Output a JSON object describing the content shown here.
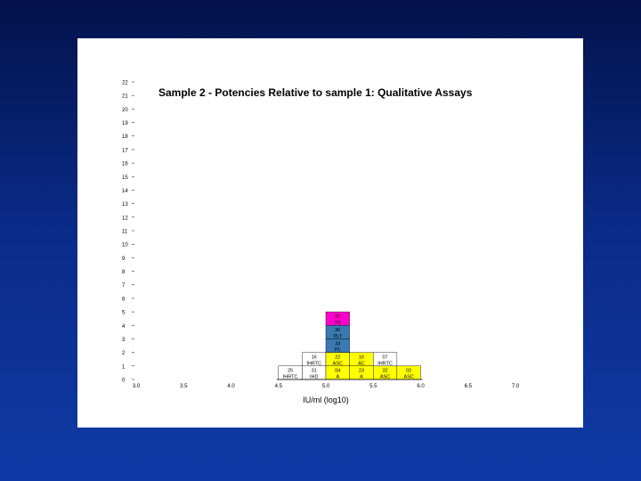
{
  "chart_data": {
    "type": "bar",
    "title": "Sample 2 - Potencies Relative to sample 1: Qualitative Assays",
    "xlabel": "IU/ml (log10)",
    "ylabel": "",
    "xlim": [
      3.0,
      7.0
    ],
    "ylim": [
      0,
      22
    ],
    "x_ticks": [
      "3.0",
      "3.5",
      "4.0",
      "4.5",
      "5.0",
      "5.5",
      "6.0",
      "6.5",
      "7.0"
    ],
    "y_ticks": [
      "0",
      "1",
      "2",
      "3",
      "4",
      "5",
      "6",
      "7",
      "8",
      "9",
      "10",
      "11",
      "12",
      "13",
      "14",
      "15",
      "16",
      "17",
      "18",
      "19",
      "20",
      "21",
      "22"
    ],
    "bin_width": 0.25,
    "stacked_cells": [
      {
        "bin_start": 4.5,
        "level": 0,
        "lab": "25",
        "assay": "IHRTC",
        "color": "#ffffff"
      },
      {
        "bin_start": 4.75,
        "level": 0,
        "lab": "31",
        "assay": "IHD",
        "color": "#ffffff"
      },
      {
        "bin_start": 4.75,
        "level": 1,
        "lab": "16",
        "assay": "IHRTC",
        "color": "#ffffff"
      },
      {
        "bin_start": 5.0,
        "level": 0,
        "lab": "04",
        "assay": "A",
        "color": "#ffff00"
      },
      {
        "bin_start": 5.0,
        "level": 1,
        "lab": "22",
        "assay": "ASC",
        "color": "#ffff00"
      },
      {
        "bin_start": 5.0,
        "level": 2,
        "lab": "33",
        "assay": "PL",
        "color": "#3a7ab2"
      },
      {
        "bin_start": 5.0,
        "level": 3,
        "lab": "30",
        "assay": "PLT",
        "color": "#3a7ab2"
      },
      {
        "bin_start": 5.0,
        "level": 4,
        "lab": "27",
        "assay": "TS",
        "color": "#ff00cc"
      },
      {
        "bin_start": 5.25,
        "level": 0,
        "lab": "23",
        "assay": "A",
        "color": "#ffff00"
      },
      {
        "bin_start": 5.25,
        "level": 1,
        "lab": "16",
        "assay": "AC",
        "color": "#ffff00"
      },
      {
        "bin_start": 5.5,
        "level": 0,
        "lab": "32",
        "assay": "ASC",
        "color": "#ffff00"
      },
      {
        "bin_start": 5.5,
        "level": 1,
        "lab": "07",
        "assay": "IHRTC",
        "color": "#ffffff"
      },
      {
        "bin_start": 5.75,
        "level": 0,
        "lab": "02",
        "assay": "ASC",
        "color": "#ffff00"
      }
    ]
  }
}
